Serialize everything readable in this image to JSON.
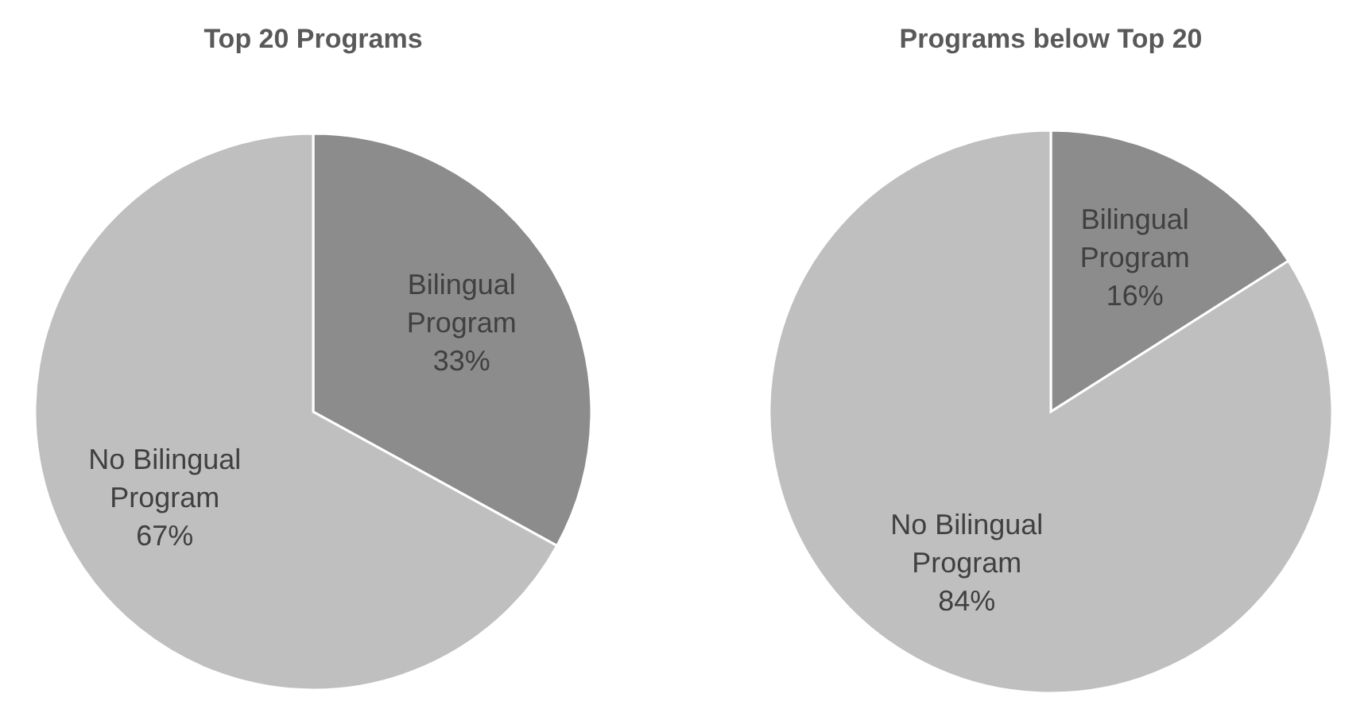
{
  "chart_data": [
    {
      "type": "pie",
      "title": "Top 20 Programs",
      "categories": [
        "Bilingual Program",
        "No Bilingual Program"
      ],
      "values": [
        33,
        67
      ],
      "value_labels": [
        "33%",
        "67%"
      ],
      "colors": [
        "#8c8c8c",
        "#bfbfbf"
      ]
    },
    {
      "type": "pie",
      "title": "Programs below Top 20",
      "categories": [
        "Bilingual Program",
        "No Bilingual Program"
      ],
      "values": [
        16,
        84
      ],
      "value_labels": [
        "16%",
        "84%"
      ],
      "colors": [
        "#8c8c8c",
        "#bfbfbf"
      ]
    }
  ]
}
